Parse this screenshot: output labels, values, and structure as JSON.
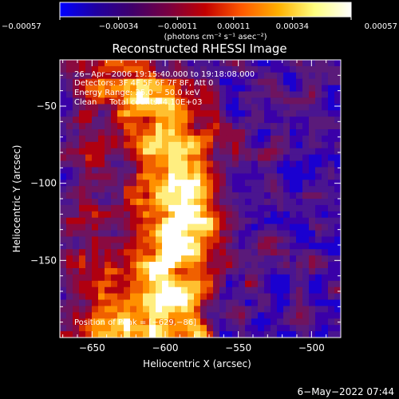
{
  "chart_data": {
    "type": "heatmap",
    "title": "Reconstructed RHESSI Image",
    "xlabel": "Heliocentric X (arcsec)",
    "ylabel": "Heliocentric Y (arcsec)",
    "xlim": [
      -672,
      -480
    ],
    "ylim": [
      -200,
      -20
    ],
    "x_ticks": [
      -650,
      -600,
      -550,
      -500
    ],
    "x_tick_labels": [
      "−650",
      "−600",
      "−550",
      "−500"
    ],
    "y_ticks": [
      -50,
      -100,
      -150
    ],
    "y_tick_labels": [
      "−50",
      "−100",
      "−150"
    ],
    "colorbar": {
      "range": [
        -0.00057,
        0.00057
      ],
      "ticks": [
        -0.00057,
        -0.00034,
        -0.00011,
        0.00011,
        0.00034,
        0.00057
      ],
      "tick_labels": [
        "−0.00057",
        "−0.00034",
        "−0.00011",
        "0.00011",
        "0.00034",
        "0.00057"
      ],
      "units_label": "(photons cm⁻² s⁻¹ asec⁻²)",
      "colormap": [
        "#0000ff",
        "#2000a0",
        "#40006a",
        "#7a0040",
        "#c20000",
        "#ff5a00",
        "#ffb000",
        "#ffff80",
        "#ffffff"
      ]
    },
    "annotations": {
      "time_range": "26−Apr−2006 19:15:40.000 to 19:18:08.000",
      "detectors": "Detectors: 3F 4F 5F 6F 7F 8F, Att 0",
      "energy_range": "Energy Range: 25.0 − 50.0 keV",
      "clean_counts": "Clean     Total counts: 4.10E+03",
      "peak_position": "Position of Peak = [−629,−86]"
    },
    "peak": {
      "x": -629,
      "y": -86
    }
  },
  "footer": {
    "date": "6−May−2022 07:44"
  }
}
